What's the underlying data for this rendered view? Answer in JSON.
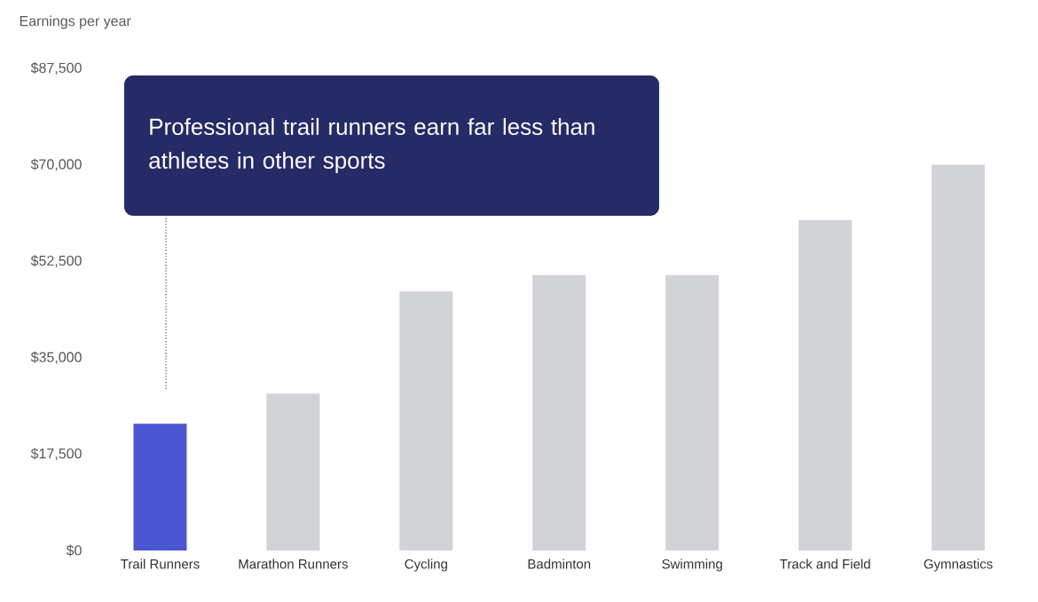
{
  "chart_data": {
    "type": "bar",
    "ylabel": "Earnings per year",
    "categories": [
      "Trail Runners",
      "Marathon Runners",
      "Cycling",
      "Badminton",
      "Swimming",
      "Track and Field",
      "Gymnastics"
    ],
    "values": [
      23000,
      28500,
      47000,
      50000,
      50000,
      60000,
      70000
    ],
    "colors": [
      "#4b56d2",
      "#d1d3d7",
      "#d1d3d7",
      "#d1d3d7",
      "#d1d3d7",
      "#d1d3d7",
      "#d1d3d7"
    ],
    "ylim": [
      0,
      87500
    ],
    "yticks": [
      {
        "value": 0,
        "label": "$0"
      },
      {
        "value": 17500,
        "label": "$17,500"
      },
      {
        "value": 35000,
        "label": "$35,000"
      },
      {
        "value": 52500,
        "label": "$52,500"
      },
      {
        "value": 70000,
        "label": "$70,000"
      },
      {
        "value": 87500,
        "label": "$87,500"
      }
    ],
    "grid": false,
    "annotations": [
      "Professional trail runners earn far less than athletes in other sports"
    ]
  }
}
